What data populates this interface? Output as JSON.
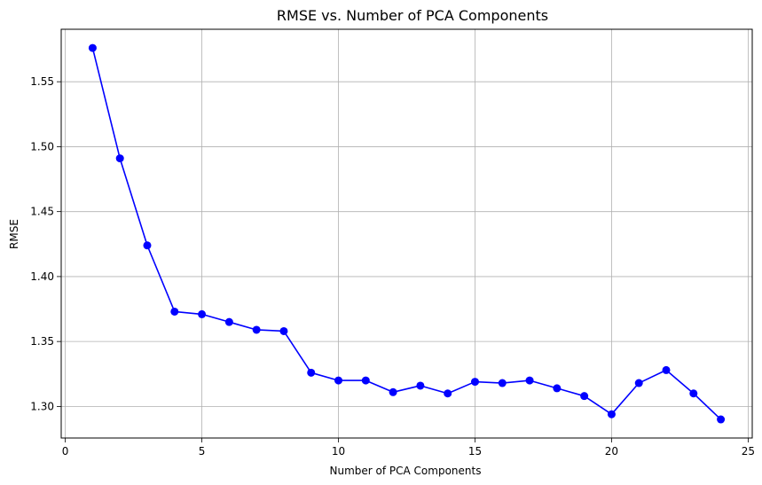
{
  "chart_data": {
    "type": "line",
    "title": "RMSE vs. Number of PCA Components",
    "xlabel": "Number of PCA Components",
    "ylabel": "RMSE",
    "xlim": [
      -0.15,
      25.15
    ],
    "ylim": [
      1.2757,
      1.5904
    ],
    "xticks": [
      0,
      5,
      10,
      15,
      20,
      25
    ],
    "yticks": [
      1.3,
      1.35,
      1.4,
      1.45,
      1.5,
      1.55
    ],
    "grid": true,
    "series": [
      {
        "color": "#0000ff",
        "marker": "circle",
        "x": [
          1,
          2,
          3,
          4,
          5,
          6,
          7,
          8,
          9,
          10,
          11,
          12,
          13,
          14,
          15,
          16,
          17,
          18,
          19,
          20,
          21,
          22,
          23,
          24
        ],
        "y": [
          1.576,
          1.491,
          1.424,
          1.373,
          1.371,
          1.365,
          1.359,
          1.358,
          1.326,
          1.32,
          1.32,
          1.311,
          1.316,
          1.31,
          1.319,
          1.318,
          1.32,
          1.314,
          1.308,
          1.294,
          1.318,
          1.328,
          1.31,
          1.29
        ]
      }
    ]
  }
}
